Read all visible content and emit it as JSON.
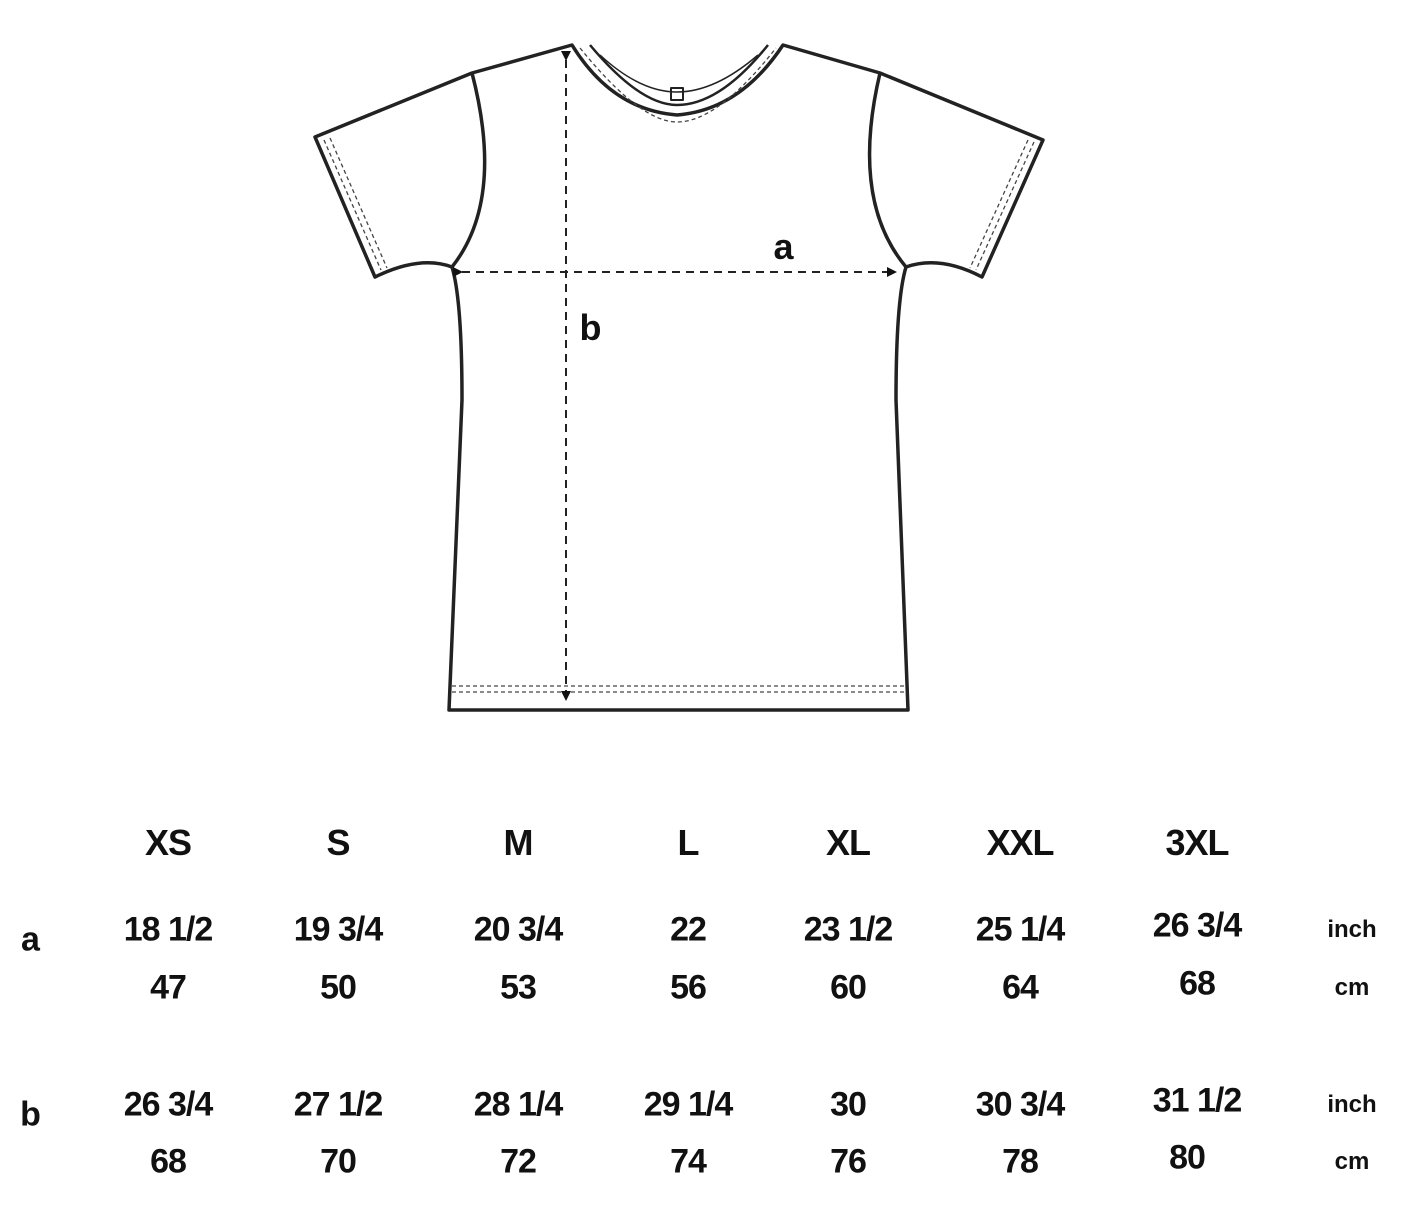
{
  "diagram": {
    "garment": "t-shirt",
    "measure_labels": {
      "a": "a",
      "b": "b"
    }
  },
  "table": {
    "sizes": [
      "XS",
      "S",
      "M",
      "L",
      "XL",
      "XXL",
      "3XL"
    ],
    "rows": [
      {
        "label": "a",
        "inch": [
          "18 1/2",
          "19 3/4",
          "20 3/4",
          "22",
          "23 1/2",
          "25 1/4",
          "26 3/4"
        ],
        "cm": [
          "47",
          "50",
          "53",
          "56",
          "60",
          "64",
          "68"
        ],
        "inch_unit": "inch",
        "cm_unit": "cm"
      },
      {
        "label": "b",
        "inch": [
          "26 3/4",
          "27 1/2",
          "28 1/4",
          "29 1/4",
          "30",
          "30 3/4",
          "31 1/2"
        ],
        "cm": [
          "68",
          "70",
          "72",
          "74",
          "76",
          "78",
          "80"
        ],
        "inch_unit": "inch",
        "cm_unit": "cm"
      }
    ]
  }
}
